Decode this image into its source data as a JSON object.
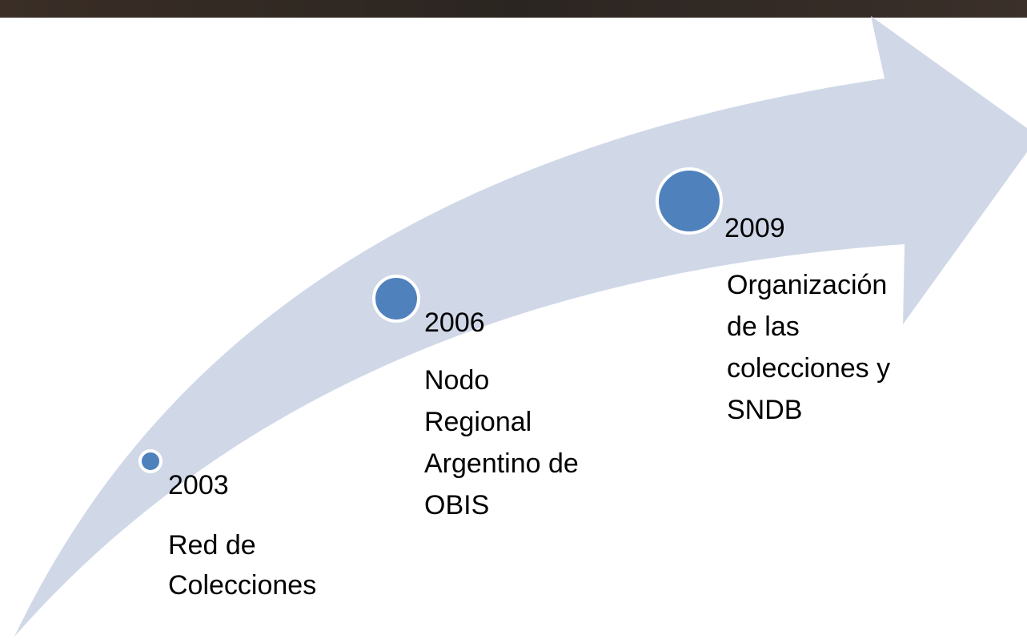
{
  "timeline": {
    "milestones": [
      {
        "year": "2003",
        "description_lines": [
          "Red de",
          "Colecciones"
        ]
      },
      {
        "year": "2006",
        "description_lines": [
          "Nodo",
          "Regional",
          "Argentino de",
          "OBIS"
        ]
      },
      {
        "year": "2009",
        "description_lines": [
          "Organización",
          "de las",
          "colecciones y",
          "SNDB"
        ]
      }
    ]
  }
}
